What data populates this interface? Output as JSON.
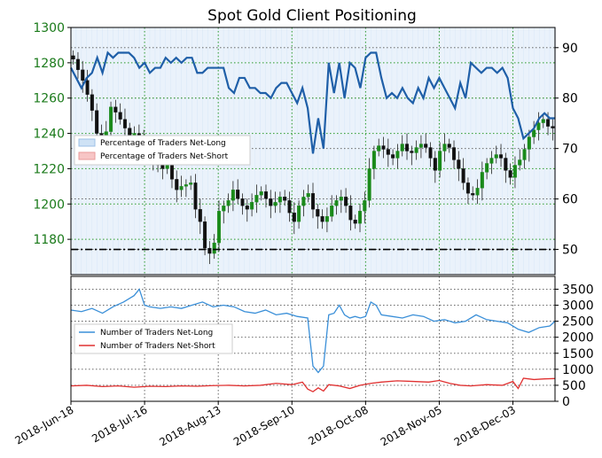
{
  "chart_data": {
    "type": "line",
    "title": "Spot Gold Client Positioning",
    "x_ticks": [
      "2018-Jun-18",
      "2018-Jul-16",
      "2018-Aug-13",
      "2018-Sep-10",
      "2018-Oct-08",
      "2018-Nov-05",
      "2018-Dec-03"
    ],
    "x_range_days": [
      0,
      175
    ],
    "top_panel": {
      "price_axis": {
        "ticks": [
          1180,
          1200,
          1220,
          1240,
          1260,
          1280,
          1300
        ],
        "range": [
          1160,
          1300
        ],
        "color": "#1a7a1a"
      },
      "percent_axis": {
        "ticks": [
          50,
          60,
          70,
          80,
          90
        ],
        "range": [
          45,
          94
        ]
      },
      "dashed_line_value": 50,
      "legend": {
        "position": "upper-left",
        "entries": [
          "Percentage of Traders Net-Long",
          "Percentage of Traders Net-Short"
        ]
      },
      "series": [
        {
          "name": "Percentage of Traders Net-Long",
          "axis": "percent",
          "color": "#1f5fa8",
          "points": [
            [
              0,
              86
            ],
            [
              2,
              84
            ],
            [
              4,
              82
            ],
            [
              6,
              84
            ],
            [
              8,
              85
            ],
            [
              10,
              88
            ],
            [
              12,
              85
            ],
            [
              14,
              89
            ],
            [
              16,
              88
            ],
            [
              18,
              89
            ],
            [
              20,
              89
            ],
            [
              22,
              89
            ],
            [
              24,
              88
            ],
            [
              26,
              86
            ],
            [
              28,
              87
            ],
            [
              30,
              85
            ],
            [
              32,
              86
            ],
            [
              34,
              86
            ],
            [
              36,
              88
            ],
            [
              38,
              87
            ],
            [
              40,
              88
            ],
            [
              42,
              87
            ],
            [
              44,
              88
            ],
            [
              46,
              88
            ],
            [
              48,
              85
            ],
            [
              50,
              85
            ],
            [
              52,
              86
            ],
            [
              54,
              86
            ],
            [
              56,
              86
            ],
            [
              58,
              86
            ],
            [
              60,
              82
            ],
            [
              62,
              81
            ],
            [
              64,
              84
            ],
            [
              66,
              84
            ],
            [
              68,
              82
            ],
            [
              70,
              82
            ],
            [
              72,
              81
            ],
            [
              74,
              81
            ],
            [
              76,
              80
            ],
            [
              78,
              82
            ],
            [
              80,
              83
            ],
            [
              82,
              83
            ],
            [
              84,
              81
            ],
            [
              86,
              79
            ],
            [
              88,
              82
            ],
            [
              90,
              78
            ],
            [
              92,
              69
            ],
            [
              94,
              76
            ],
            [
              96,
              70
            ],
            [
              98,
              87
            ],
            [
              100,
              81
            ],
            [
              102,
              87
            ],
            [
              104,
              80
            ],
            [
              106,
              87
            ],
            [
              108,
              86
            ],
            [
              110,
              82
            ],
            [
              112,
              88
            ],
            [
              114,
              89
            ],
            [
              116,
              89
            ],
            [
              118,
              84
            ],
            [
              120,
              80
            ],
            [
              122,
              81
            ],
            [
              124,
              80
            ],
            [
              126,
              82
            ],
            [
              128,
              80
            ],
            [
              130,
              79
            ],
            [
              132,
              82
            ],
            [
              134,
              80
            ],
            [
              136,
              84
            ],
            [
              138,
              82
            ],
            [
              140,
              84
            ],
            [
              142,
              82
            ],
            [
              144,
              80
            ],
            [
              146,
              78
            ],
            [
              148,
              83
            ],
            [
              150,
              80
            ],
            [
              152,
              87
            ],
            [
              154,
              86
            ],
            [
              156,
              85
            ],
            [
              158,
              86
            ],
            [
              160,
              86
            ],
            [
              162,
              85
            ],
            [
              164,
              86
            ],
            [
              166,
              84
            ],
            [
              168,
              78
            ],
            [
              170,
              76
            ],
            [
              172,
              72
            ],
            [
              174,
              73
            ],
            [
              176,
              74
            ],
            [
              178,
              76
            ],
            [
              180,
              77
            ],
            [
              182,
              76
            ],
            [
              184,
              76
            ]
          ]
        }
      ],
      "price_candles": [
        1282,
        1276,
        1270,
        1262,
        1253,
        1240,
        1236,
        1241,
        1255,
        1252,
        1248,
        1243,
        1238,
        1240,
        1236,
        1232,
        1228,
        1226,
        1222,
        1220,
        1225,
        1214,
        1208,
        1210,
        1211,
        1212,
        1197,
        1190,
        1175,
        1172,
        1178,
        1196,
        1199,
        1202,
        1208,
        1203,
        1199,
        1197,
        1201,
        1205,
        1207,
        1203,
        1199,
        1201,
        1204,
        1202,
        1195,
        1190,
        1199,
        1204,
        1206,
        1197,
        1193,
        1190,
        1193,
        1199,
        1202,
        1204,
        1199,
        1191,
        1189,
        1196,
        1202,
        1220,
        1230,
        1233,
        1231,
        1228,
        1226,
        1230,
        1234,
        1230,
        1229,
        1232,
        1234,
        1232,
        1226,
        1219,
        1230,
        1234,
        1232,
        1225,
        1220,
        1212,
        1206,
        1205,
        1209,
        1218,
        1223,
        1226,
        1228,
        1226,
        1219,
        1215,
        1222,
        1225,
        1231,
        1238,
        1242,
        1246,
        1248,
        1244,
        1243
      ]
    },
    "bottom_panel": {
      "count_axis": {
        "ticks": [
          0,
          500,
          1000,
          1500,
          2000,
          2500,
          3000,
          3500
        ],
        "range": [
          0,
          3900
        ]
      },
      "legend": {
        "position": "center-left",
        "entries": [
          "Number of Traders Net-Long",
          "Number of Traders Net-Short"
        ]
      },
      "series": [
        {
          "name": "Number of Traders Net-Long",
          "color": "#3a8fd8",
          "points": [
            [
              0,
              2850
            ],
            [
              4,
              2800
            ],
            [
              8,
              2900
            ],
            [
              12,
              2750
            ],
            [
              16,
              2950
            ],
            [
              20,
              3100
            ],
            [
              24,
              3300
            ],
            [
              26,
              3500
            ],
            [
              28,
              3000
            ],
            [
              30,
              2950
            ],
            [
              34,
              2900
            ],
            [
              38,
              2950
            ],
            [
              42,
              2900
            ],
            [
              46,
              3000
            ],
            [
              50,
              3100
            ],
            [
              54,
              2950
            ],
            [
              58,
              3000
            ],
            [
              62,
              2950
            ],
            [
              66,
              2800
            ],
            [
              70,
              2750
            ],
            [
              74,
              2850
            ],
            [
              78,
              2700
            ],
            [
              82,
              2750
            ],
            [
              86,
              2650
            ],
            [
              90,
              2600
            ],
            [
              92,
              1100
            ],
            [
              94,
              900
            ],
            [
              96,
              1100
            ],
            [
              98,
              2700
            ],
            [
              100,
              2750
            ],
            [
              102,
              3000
            ],
            [
              104,
              2700
            ],
            [
              106,
              2600
            ],
            [
              108,
              2650
            ],
            [
              110,
              2600
            ],
            [
              112,
              2650
            ],
            [
              114,
              3100
            ],
            [
              116,
              3000
            ],
            [
              118,
              2700
            ],
            [
              122,
              2650
            ],
            [
              126,
              2600
            ],
            [
              130,
              2700
            ],
            [
              134,
              2650
            ],
            [
              138,
              2500
            ],
            [
              142,
              2550
            ],
            [
              146,
              2450
            ],
            [
              150,
              2500
            ],
            [
              154,
              2700
            ],
            [
              158,
              2550
            ],
            [
              162,
              2500
            ],
            [
              166,
              2450
            ],
            [
              170,
              2250
            ],
            [
              174,
              2150
            ],
            [
              178,
              2300
            ],
            [
              182,
              2350
            ],
            [
              184,
              2500
            ]
          ]
        },
        {
          "name": "Number of Traders Net-Short",
          "color": "#e03030",
          "points": [
            [
              0,
              480
            ],
            [
              6,
              500
            ],
            [
              12,
              460
            ],
            [
              18,
              480
            ],
            [
              24,
              440
            ],
            [
              30,
              470
            ],
            [
              36,
              460
            ],
            [
              42,
              480
            ],
            [
              48,
              470
            ],
            [
              54,
              490
            ],
            [
              60,
              500
            ],
            [
              66,
              480
            ],
            [
              72,
              500
            ],
            [
              78,
              560
            ],
            [
              84,
              520
            ],
            [
              88,
              600
            ],
            [
              90,
              380
            ],
            [
              92,
              300
            ],
            [
              94,
              420
            ],
            [
              96,
              320
            ],
            [
              98,
              520
            ],
            [
              102,
              480
            ],
            [
              106,
              400
            ],
            [
              110,
              500
            ],
            [
              114,
              560
            ],
            [
              118,
              600
            ],
            [
              124,
              640
            ],
            [
              130,
              620
            ],
            [
              136,
              600
            ],
            [
              140,
              650
            ],
            [
              144,
              560
            ],
            [
              148,
              500
            ],
            [
              152,
              480
            ],
            [
              158,
              520
            ],
            [
              164,
              500
            ],
            [
              168,
              620
            ],
            [
              170,
              400
            ],
            [
              172,
              720
            ],
            [
              176,
              680
            ],
            [
              180,
              700
            ],
            [
              184,
              710
            ]
          ]
        }
      ]
    }
  }
}
